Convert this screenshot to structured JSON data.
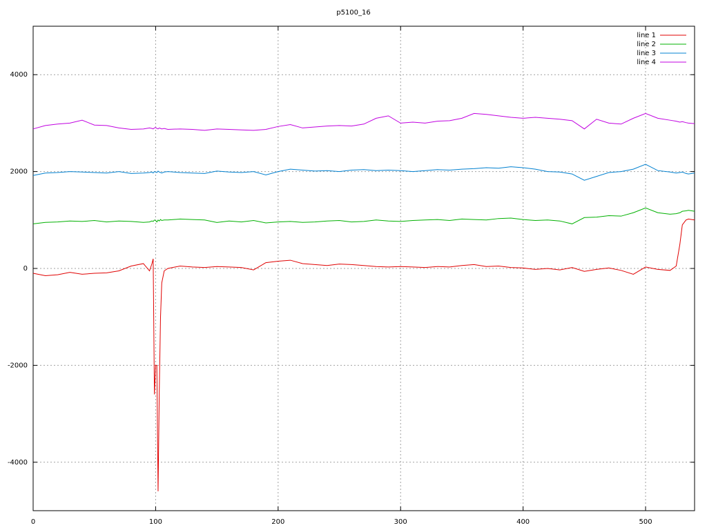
{
  "chart_data": {
    "type": "line",
    "title": "p5100_16",
    "xlim": [
      0,
      540
    ],
    "ylim": [
      -5000,
      5000
    ],
    "xticks": [
      0,
      100,
      200,
      300,
      400,
      500
    ],
    "yticks": [
      -4000,
      -2000,
      0,
      2000,
      4000
    ],
    "grid": true,
    "legend": "top-right",
    "x": [
      0,
      10,
      20,
      30,
      40,
      50,
      60,
      70,
      80,
      90,
      95,
      97,
      98,
      99,
      100,
      101,
      102,
      103,
      104,
      105,
      107,
      110,
      120,
      130,
      140,
      150,
      160,
      170,
      180,
      190,
      200,
      210,
      220,
      230,
      240,
      250,
      260,
      270,
      280,
      290,
      300,
      310,
      320,
      330,
      340,
      350,
      360,
      370,
      380,
      390,
      400,
      410,
      420,
      430,
      440,
      450,
      460,
      470,
      480,
      490,
      500,
      510,
      520,
      525,
      528,
      530,
      533,
      535,
      540
    ],
    "series": [
      {
        "name": "line 1",
        "color": "#e00000",
        "values": [
          -100,
          -150,
          -130,
          -80,
          -120,
          -100,
          -90,
          -50,
          50,
          100,
          -50,
          100,
          200,
          -2600,
          -2000,
          -2000,
          -4600,
          -2500,
          -1000,
          -300,
          -50,
          0,
          50,
          30,
          20,
          40,
          30,
          20,
          -30,
          120,
          150,
          170,
          100,
          80,
          60,
          90,
          80,
          60,
          40,
          30,
          40,
          30,
          20,
          40,
          30,
          60,
          80,
          40,
          50,
          20,
          10,
          -20,
          0,
          -30,
          20,
          -60,
          -20,
          10,
          -40,
          -120,
          30,
          -20,
          -40,
          50,
          500,
          900,
          1000,
          1020,
          1000
        ]
      },
      {
        "name": "line 2",
        "color": "#00b000",
        "values": [
          920,
          950,
          960,
          980,
          970,
          990,
          960,
          980,
          970,
          950,
          960,
          980,
          970,
          1000,
          990,
          960,
          1000,
          980,
          1010,
          990,
          1000,
          1000,
          1020,
          1010,
          1000,
          950,
          980,
          960,
          990,
          940,
          960,
          970,
          950,
          960,
          980,
          990,
          960,
          970,
          1000,
          980,
          970,
          990,
          1000,
          1010,
          990,
          1020,
          1010,
          1000,
          1030,
          1040,
          1010,
          990,
          1000,
          980,
          920,
          1050,
          1060,
          1090,
          1080,
          1150,
          1250,
          1150,
          1120,
          1130,
          1150,
          1180,
          1190,
          1200,
          1180
        ]
      },
      {
        "name": "line 3",
        "color": "#0080d0",
        "values": [
          1920,
          1970,
          1980,
          2000,
          1990,
          1980,
          1970,
          2000,
          1960,
          1970,
          1980,
          1990,
          1970,
          2000,
          1990,
          1980,
          2010,
          1990,
          1980,
          1970,
          1990,
          2000,
          1980,
          1970,
          1960,
          2010,
          1990,
          1980,
          2000,
          1930,
          2000,
          2050,
          2030,
          2010,
          2020,
          2000,
          2030,
          2040,
          2020,
          2030,
          2020,
          2000,
          2020,
          2040,
          2030,
          2050,
          2060,
          2080,
          2070,
          2100,
          2080,
          2050,
          2000,
          1990,
          1950,
          1820,
          1900,
          1980,
          2000,
          2050,
          2150,
          2020,
          1990,
          1970,
          1980,
          1990,
          1960,
          1950,
          1970
        ]
      },
      {
        "name": "line 4",
        "color": "#c000e0",
        "values": [
          2880,
          2950,
          2980,
          3000,
          3060,
          2960,
          2950,
          2900,
          2870,
          2880,
          2900,
          2890,
          2880,
          2900,
          2910,
          2890,
          2880,
          2900,
          2890,
          2880,
          2890,
          2870,
          2880,
          2870,
          2850,
          2880,
          2870,
          2860,
          2850,
          2870,
          2930,
          2970,
          2900,
          2920,
          2940,
          2950,
          2940,
          2980,
          3100,
          3150,
          3000,
          3020,
          3000,
          3040,
          3050,
          3100,
          3200,
          3180,
          3150,
          3120,
          3100,
          3120,
          3100,
          3080,
          3050,
          2880,
          3080,
          3000,
          2980,
          3100,
          3200,
          3100,
          3060,
          3040,
          3020,
          3030,
          3010,
          3000,
          2990
        ]
      }
    ]
  }
}
